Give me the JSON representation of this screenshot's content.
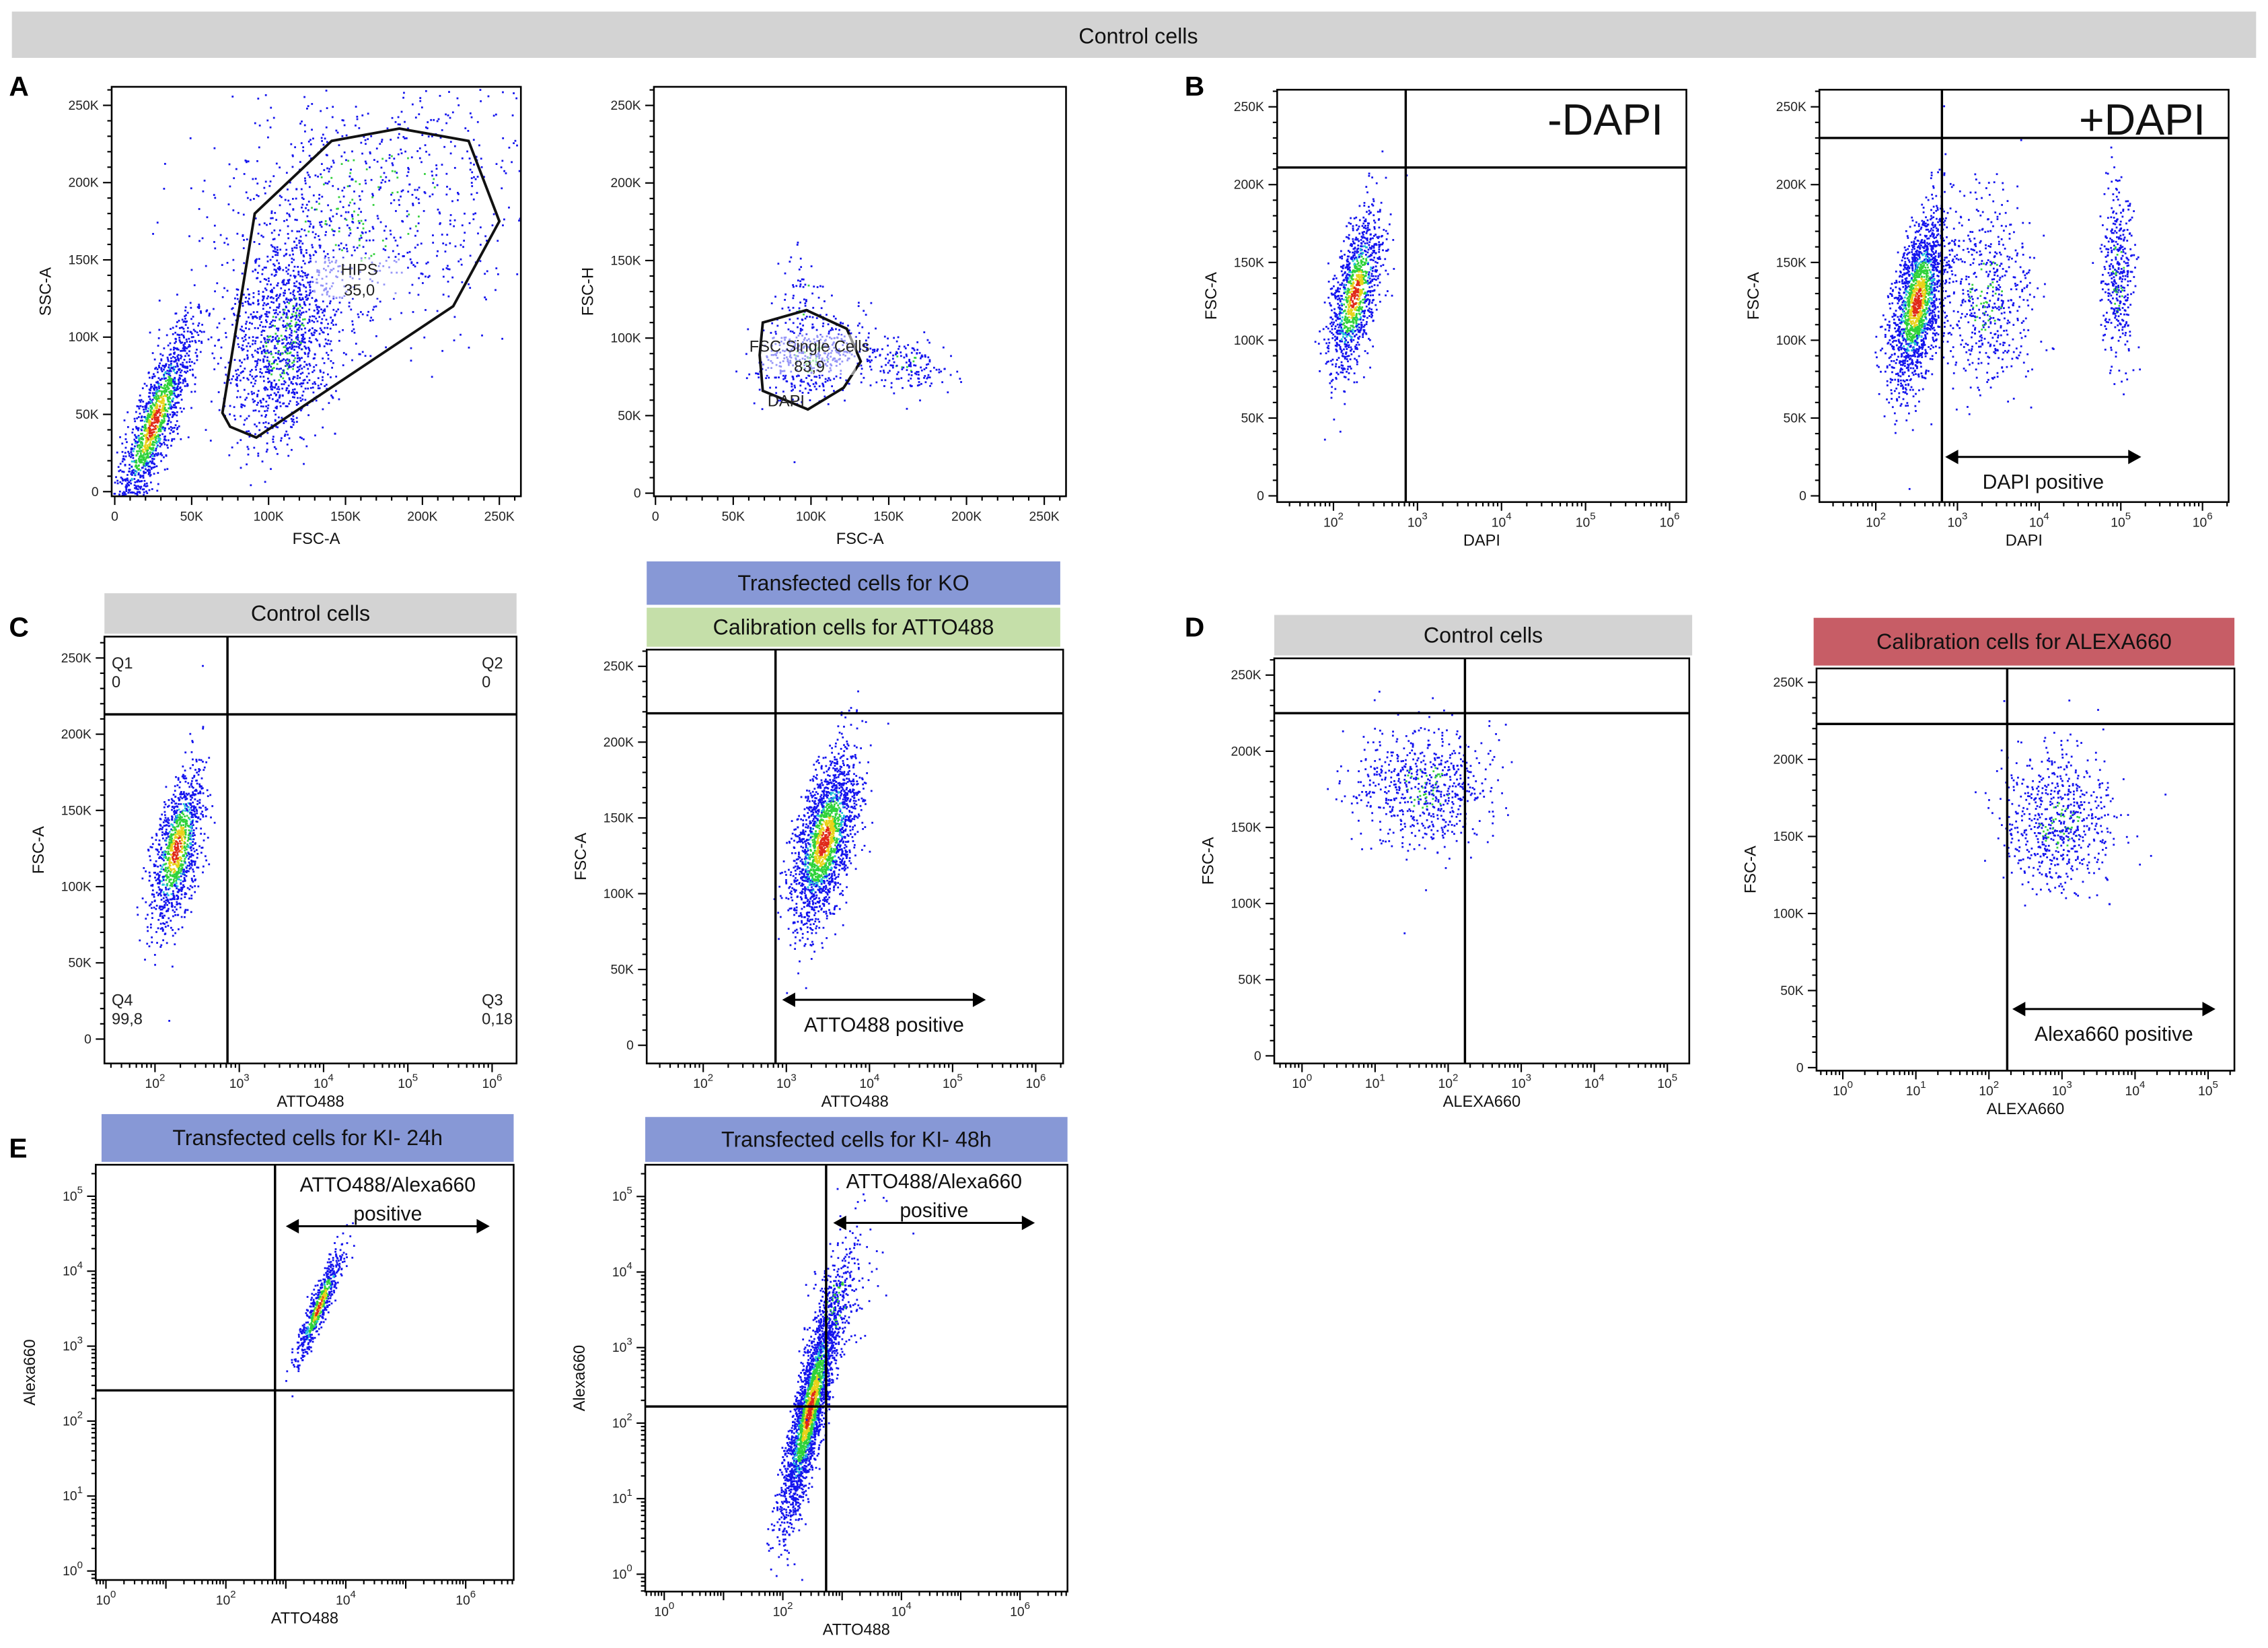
{
  "banner": {
    "title": "Control cells",
    "color": "#d3d3d3"
  },
  "panel_letters": [
    "A",
    "B",
    "C",
    "D",
    "E"
  ],
  "headers": [
    {
      "id": "C1",
      "label": "Control cells",
      "color": "#d3d3d3"
    },
    {
      "id": "C2a",
      "label": "Transfected cells for KO",
      "color": "#8798d6"
    },
    {
      "id": "C2b",
      "label": "Calibration cells for ATTO488",
      "color": "#c5dfa9"
    },
    {
      "id": "D1",
      "label": "Control cells",
      "color": "#d3d3d3"
    },
    {
      "id": "D2",
      "label": "Calibration cells for ALEXA660",
      "color": "#c75d66"
    },
    {
      "id": "E1",
      "label": "Transfected cells for KI- 24h",
      "color": "#8798d6"
    },
    {
      "id": "E2",
      "label": "Transfected cells for KI- 48h",
      "color": "#8798d6"
    }
  ],
  "chart_data": [
    {
      "id": "A1",
      "type": "scatter",
      "xlabel": "FSC-A",
      "ylabel": "SSC-A",
      "xscale": "linear",
      "yscale": "linear",
      "xlim": [
        -2000,
        264000
      ],
      "ylim": [
        -3000,
        262000
      ],
      "xticks": [
        [
          0,
          "0"
        ],
        [
          50000,
          "50K"
        ],
        [
          100000,
          "100K"
        ],
        [
          150000,
          "150K"
        ],
        [
          200000,
          "200K"
        ],
        [
          250000,
          "250K"
        ]
      ],
      "yticks": [
        [
          0,
          "0"
        ],
        [
          50000,
          "50K"
        ],
        [
          100000,
          "100K"
        ],
        [
          150000,
          "150K"
        ],
        [
          200000,
          "200K"
        ],
        [
          250000,
          "250K"
        ]
      ],
      "clusters": [
        {
          "cx": 25000,
          "cy": 45000,
          "sx": 13000,
          "sy": 32000,
          "rho": 0.85,
          "n": 1400,
          "hot": true
        },
        {
          "cx": 110000,
          "cy": 100000,
          "sx": 18000,
          "sy": 35000,
          "rho": 0.3,
          "n": 1300,
          "hot": false
        },
        {
          "cx": 165000,
          "cy": 185000,
          "sx": 55000,
          "sy": 45000,
          "rho": 0.2,
          "n": 900,
          "hot": false
        }
      ],
      "gate_polygon": {
        "name": "HIPS",
        "value": "35,0",
        "points": [
          [
            141000,
            227000
          ],
          [
            185000,
            235000
          ],
          [
            230000,
            227000
          ],
          [
            250000,
            175000
          ],
          [
            220000,
            120000
          ],
          [
            92000,
            35000
          ],
          [
            75000,
            42000
          ],
          [
            70000,
            51000
          ],
          [
            91000,
            180000
          ]
        ],
        "label_at": [
          159000,
          142000
        ]
      }
    },
    {
      "id": "A2",
      "type": "scatter",
      "xlabel": "FSC-A",
      "ylabel": "FSC-H",
      "xscale": "linear",
      "yscale": "linear",
      "xlim": [
        -1000,
        264000
      ],
      "ylim": [
        -2000,
        262000
      ],
      "xticks": [
        [
          0,
          "0"
        ],
        [
          50000,
          "50K"
        ],
        [
          100000,
          "100K"
        ],
        [
          150000,
          "150K"
        ],
        [
          200000,
          "200K"
        ],
        [
          250000,
          "250K"
        ]
      ],
      "yticks": [
        [
          0,
          "0"
        ],
        [
          50000,
          "50K"
        ],
        [
          100000,
          "100K"
        ],
        [
          150000,
          "150K"
        ],
        [
          200000,
          "200K"
        ],
        [
          250000,
          "250K"
        ]
      ],
      "clusters": [
        {
          "cx": 98000,
          "cy": 88000,
          "sx": 16000,
          "sy": 14000,
          "rho": 0.2,
          "n": 450,
          "hot": false
        },
        {
          "cx": 160000,
          "cy": 85000,
          "sx": 14000,
          "sy": 9000,
          "rho": -0.2,
          "n": 180,
          "hot": false
        },
        {
          "cx": 95000,
          "cy": 125000,
          "sx": 8000,
          "sy": 15000,
          "rho": 0.0,
          "n": 60,
          "hot": false
        }
      ],
      "gate_polygon": {
        "name": "FSC Single Cells",
        "value": "83,9",
        "extra_label": "DAPI",
        "points": [
          [
            69000,
            110000
          ],
          [
            97000,
            118000
          ],
          [
            123000,
            106000
          ],
          [
            132000,
            85000
          ],
          [
            121000,
            68000
          ],
          [
            98000,
            54000
          ],
          [
            69000,
            66000
          ],
          [
            67000,
            89000
          ]
        ],
        "label_at": [
          99000,
          93000
        ],
        "extra_at": [
          84000,
          56000
        ]
      }
    },
    {
      "id": "B1",
      "type": "scatter",
      "xlabel": "DAPI",
      "ylabel": "FSC-A",
      "title": "-DAPI",
      "xscale": "log",
      "yscale": "linear",
      "xlim": [
        1.33,
        6.2
      ],
      "ylim": [
        -4000,
        261000
      ],
      "xticks": [
        [
          2,
          "10",
          "2"
        ],
        [
          3,
          "10",
          "3"
        ],
        [
          4,
          "10",
          "4"
        ],
        [
          5,
          "10",
          "5"
        ],
        [
          6,
          "10",
          "6"
        ]
      ],
      "yticks": [
        [
          0,
          "0"
        ],
        [
          50000,
          "50K"
        ],
        [
          100000,
          "100K"
        ],
        [
          150000,
          "150K"
        ],
        [
          200000,
          "200K"
        ],
        [
          250000,
          "250K"
        ]
      ],
      "clusters": [
        {
          "cx": 2.25,
          "cy": 130000,
          "sx": 0.16,
          "sy": 26000,
          "rho": 0.6,
          "n": 1100,
          "hot": true
        }
      ],
      "gate_x": 2.86,
      "gate_y": 211000
    },
    {
      "id": "B2",
      "type": "scatter",
      "xlabel": "DAPI",
      "ylabel": "FSC-A",
      "title": "+DAPI",
      "xscale": "log",
      "yscale": "linear",
      "xlim": [
        1.31,
        6.32
      ],
      "ylim": [
        -4000,
        261000
      ],
      "xticks": [
        [
          2,
          "10",
          "2"
        ],
        [
          3,
          "10",
          "3"
        ],
        [
          4,
          "10",
          "4"
        ],
        [
          5,
          "10",
          "5"
        ],
        [
          6,
          "10",
          "6"
        ]
      ],
      "yticks": [
        [
          0,
          "0"
        ],
        [
          50000,
          "50K"
        ],
        [
          100000,
          "100K"
        ],
        [
          150000,
          "150K"
        ],
        [
          200000,
          "200K"
        ],
        [
          250000,
          "250K"
        ]
      ],
      "clusters": [
        {
          "cx": 2.5,
          "cy": 125000,
          "sx": 0.17,
          "sy": 27000,
          "rho": 0.5,
          "n": 1800,
          "hot": true
        },
        {
          "cx": 3.35,
          "cy": 130000,
          "sx": 0.3,
          "sy": 30000,
          "rho": 0.0,
          "n": 550,
          "hot": false
        },
        {
          "cx": 4.95,
          "cy": 140000,
          "sx": 0.1,
          "sy": 28000,
          "rho": 0.0,
          "n": 380,
          "hot": false
        }
      ],
      "gate_x": 2.81,
      "gate_y": 230000,
      "arrow": {
        "from": 2.85,
        "to": 5.25,
        "at": 25000,
        "label": "DAPI positive"
      }
    },
    {
      "id": "C1",
      "type": "scatter",
      "xlabel": "ATTO488",
      "ylabel": "FSC-A",
      "xscale": "log",
      "yscale": "linear",
      "xlim": [
        1.4,
        6.29
      ],
      "ylim": [
        -16000,
        264000
      ],
      "xticks": [
        [
          2,
          "10",
          "2"
        ],
        [
          3,
          "10",
          "3"
        ],
        [
          4,
          "10",
          "4"
        ],
        [
          5,
          "10",
          "5"
        ],
        [
          6,
          "10",
          "6"
        ]
      ],
      "yticks": [
        [
          0,
          "0"
        ],
        [
          50000,
          "50K"
        ],
        [
          100000,
          "100K"
        ],
        [
          150000,
          "150K"
        ],
        [
          200000,
          "200K"
        ],
        [
          250000,
          "250K"
        ]
      ],
      "clusters": [
        {
          "cx": 2.25,
          "cy": 125000,
          "sx": 0.16,
          "sy": 26000,
          "rho": 0.55,
          "n": 1100,
          "hot": true
        }
      ],
      "gate_x": 2.86,
      "gate_y": 213000,
      "quadrants": {
        "Q1": {
          "name": "Q1",
          "value": "0"
        },
        "Q2": {
          "name": "Q2",
          "value": "0"
        },
        "Q3": {
          "name": "Q3",
          "value": "0,18"
        },
        "Q4": {
          "name": "Q4",
          "value": "99,8"
        }
      }
    },
    {
      "id": "C2",
      "type": "scatter",
      "xlabel": "ATTO488",
      "ylabel": "FSC-A",
      "xscale": "log",
      "yscale": "linear",
      "xlim": [
        1.32,
        6.33
      ],
      "ylim": [
        -12000,
        261000
      ],
      "xticks": [
        [
          2,
          "10",
          "2"
        ],
        [
          3,
          "10",
          "3"
        ],
        [
          4,
          "10",
          "4"
        ],
        [
          5,
          "10",
          "5"
        ],
        [
          6,
          "10",
          "6"
        ]
      ],
      "yticks": [
        [
          0,
          "0"
        ],
        [
          50000,
          "50K"
        ],
        [
          100000,
          "100K"
        ],
        [
          150000,
          "150K"
        ],
        [
          200000,
          "200K"
        ],
        [
          250000,
          "250K"
        ]
      ],
      "clusters": [
        {
          "cx": 3.45,
          "cy": 135000,
          "sx": 0.2,
          "sy": 28000,
          "rho": 0.55,
          "n": 1900,
          "hot": true
        }
      ],
      "gate_x": 2.87,
      "gate_y": 219000,
      "arrow": {
        "from": 2.95,
        "to": 5.4,
        "at": 30000,
        "label": "ATTO488 positive"
      }
    },
    {
      "id": "D1",
      "type": "scatter",
      "xlabel": "ALEXA660",
      "ylabel": "FSC-A",
      "xscale": "log",
      "yscale": "linear",
      "xlim": [
        -0.38,
        5.3
      ],
      "ylim": [
        -5000,
        261000
      ],
      "xticks": [
        [
          0,
          "10",
          "0"
        ],
        [
          1,
          "10",
          "1"
        ],
        [
          2,
          "10",
          "2"
        ],
        [
          3,
          "10",
          "3"
        ],
        [
          4,
          "10",
          "4"
        ],
        [
          5,
          "10",
          "5"
        ]
      ],
      "yticks": [
        [
          0,
          "0"
        ],
        [
          50000,
          "50K"
        ],
        [
          100000,
          "100K"
        ],
        [
          150000,
          "150K"
        ],
        [
          200000,
          "200K"
        ],
        [
          250000,
          "250K"
        ]
      ],
      "clusters": [
        {
          "cx": 1.65,
          "cy": 177000,
          "sx": 0.45,
          "sy": 20000,
          "rho": 0.0,
          "n": 650,
          "hot": false
        }
      ],
      "gate_x": 2.23,
      "gate_y": 225000
    },
    {
      "id": "D2",
      "type": "scatter",
      "xlabel": "ALEXA660",
      "ylabel": "FSC-A",
      "xscale": "log",
      "yscale": "linear",
      "xlim": [
        -0.36,
        5.36
      ],
      "ylim": [
        -2000,
        259000
      ],
      "xticks": [
        [
          0,
          "10",
          "0"
        ],
        [
          1,
          "10",
          "1"
        ],
        [
          2,
          "10",
          "2"
        ],
        [
          3,
          "10",
          "3"
        ],
        [
          4,
          "10",
          "4"
        ],
        [
          5,
          "10",
          "5"
        ]
      ],
      "yticks": [
        [
          0,
          "0"
        ],
        [
          50000,
          "50K"
        ],
        [
          100000,
          "100K"
        ],
        [
          150000,
          "150K"
        ],
        [
          200000,
          "200K"
        ],
        [
          250000,
          "250K"
        ]
      ],
      "clusters": [
        {
          "cx": 2.95,
          "cy": 160000,
          "sx": 0.38,
          "sy": 22000,
          "rho": 0.0,
          "n": 650,
          "hot": false
        }
      ],
      "gate_x": 2.25,
      "gate_y": 223000,
      "arrow": {
        "from": 2.32,
        "to": 5.1,
        "at": 38000,
        "label": "Alexa660 positive"
      }
    },
    {
      "id": "E1",
      "type": "scatter",
      "xlabel": "ATTO488",
      "ylabel": "Alexa660",
      "xscale": "log",
      "yscale": "log",
      "xlim": [
        -0.17,
        6.8
      ],
      "ylim": [
        -0.12,
        5.42
      ],
      "xticks": [
        [
          0,
          "10",
          "0"
        ],
        [
          2,
          "10",
          "2"
        ],
        [
          4,
          "10",
          "4"
        ],
        [
          6,
          "10",
          "6"
        ]
      ],
      "yticks": [
        [
          0,
          "10",
          "0"
        ],
        [
          1,
          "10",
          "1"
        ],
        [
          2,
          "10",
          "2"
        ],
        [
          3,
          "10",
          "3"
        ],
        [
          4,
          "10",
          "4"
        ],
        [
          5,
          "10",
          "5"
        ]
      ],
      "clusters": [
        {
          "cx": 3.55,
          "cy": 3.55,
          "sx": 0.2,
          "sy": 0.38,
          "rho": 0.92,
          "n": 600,
          "hot": true
        }
      ],
      "gate_x": 2.82,
      "gate_y": 2.41,
      "arrow": {
        "from": 3.0,
        "to": 6.4,
        "at": 4.6,
        "label": "positive",
        "label_top": "ATTO488/Alexa660"
      }
    },
    {
      "id": "E2",
      "type": "scatter",
      "xlabel": "ATTO488",
      "ylabel": "Alexa660",
      "xscale": "log",
      "yscale": "log",
      "xlim": [
        -0.32,
        6.8
      ],
      "ylim": [
        -0.23,
        5.42
      ],
      "xticks": [
        [
          0,
          "10",
          "0"
        ],
        [
          2,
          "10",
          "2"
        ],
        [
          4,
          "10",
          "4"
        ],
        [
          6,
          "10",
          "6"
        ]
      ],
      "yticks": [
        [
          0,
          "10",
          "0"
        ],
        [
          1,
          "10",
          "1"
        ],
        [
          2,
          "10",
          "2"
        ],
        [
          3,
          "10",
          "3"
        ],
        [
          4,
          "10",
          "4"
        ],
        [
          5,
          "10",
          "5"
        ]
      ],
      "clusters": [
        {
          "cx": 2.45,
          "cy": 2.2,
          "sx": 0.24,
          "sy": 0.75,
          "rho": 0.85,
          "n": 2600,
          "hot": true
        },
        {
          "cx": 2.9,
          "cy": 3.6,
          "sx": 0.3,
          "sy": 0.5,
          "rho": 0.6,
          "n": 250,
          "hot": false
        }
      ],
      "gate_x": 2.73,
      "gate_y": 2.22,
      "arrow": {
        "from": 2.85,
        "to": 6.25,
        "at": 4.65,
        "label": "positive",
        "label_top": "ATTO488/Alexa660"
      }
    }
  ]
}
